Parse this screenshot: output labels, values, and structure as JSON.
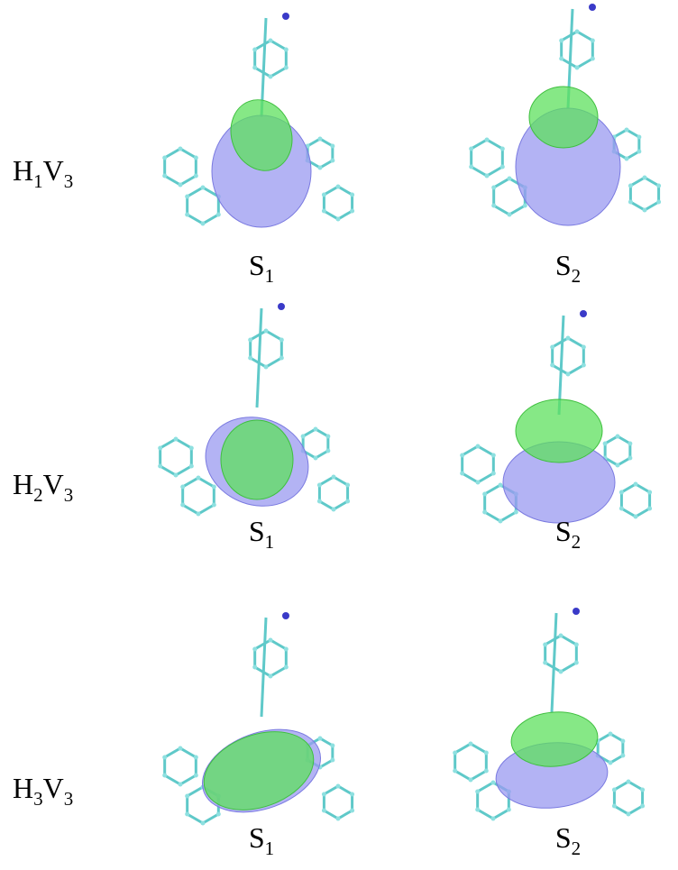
{
  "rows": [
    {
      "label": {
        "h": "H",
        "h_sub": "1",
        "v": "V",
        "v_sub": "3"
      },
      "states": [
        {
          "s": "S",
          "sub": "1"
        },
        {
          "s": "S",
          "sub": "2"
        }
      ]
    },
    {
      "label": {
        "h": "H",
        "h_sub": "2",
        "v": "V",
        "v_sub": "3"
      },
      "states": [
        {
          "s": "S",
          "sub": "1"
        },
        {
          "s": "S",
          "sub": "2"
        }
      ]
    },
    {
      "label": {
        "h": "H",
        "h_sub": "3",
        "v": "V",
        "v_sub": "3"
      },
      "states": [
        {
          "s": "S",
          "sub": "1"
        },
        {
          "s": "S",
          "sub": "2"
        }
      ]
    }
  ]
}
